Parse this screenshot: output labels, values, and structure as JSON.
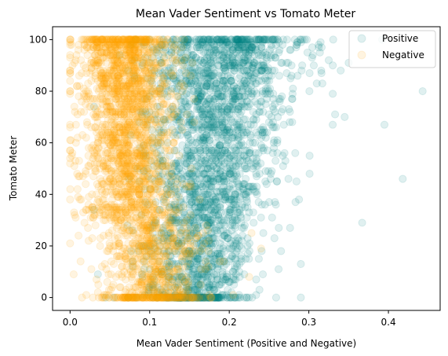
{
  "chart_data": {
    "type": "scatter",
    "title": "Mean Vader Sentiment vs Tomato Meter",
    "xlabel": "Mean Vader Sentiment (Positive and Negative)",
    "ylabel": "Tomato Meter",
    "xlim": [
      -0.022,
      0.465
    ],
    "ylim": [
      -5,
      105
    ],
    "xticks": [
      0.0,
      0.1,
      0.2,
      0.3,
      0.4
    ],
    "xtick_labels": [
      "0.0",
      "0.1",
      "0.2",
      "0.3",
      "0.4"
    ],
    "yticks": [
      0,
      20,
      40,
      60,
      80,
      100
    ],
    "ytick_labels": [
      "0",
      "20",
      "40",
      "60",
      "80",
      "100"
    ],
    "grid": false,
    "legend_position": "top-right",
    "series": [
      {
        "name": "Positive",
        "color": "#008080",
        "alpha": 0.12,
        "x_center": 0.18,
        "x_spread": 0.04,
        "x_range": [
          0.03,
          0.443
        ],
        "count": 2600,
        "outliers": [
          {
            "x": 0.443,
            "y": 80
          },
          {
            "x": 0.418,
            "y": 46
          },
          {
            "x": 0.395,
            "y": 67
          },
          {
            "x": 0.367,
            "y": 29
          },
          {
            "x": 0.345,
            "y": 70
          },
          {
            "x": 0.333,
            "y": 71
          },
          {
            "x": 0.33,
            "y": 67
          },
          {
            "x": 0.31,
            "y": 83
          },
          {
            "x": 0.305,
            "y": 94
          },
          {
            "x": 0.29,
            "y": 0
          },
          {
            "x": 0.29,
            "y": 13
          },
          {
            "x": 0.262,
            "y": 11
          },
          {
            "x": 0.35,
            "y": 91
          },
          {
            "x": 0.34,
            "y": 88
          },
          {
            "x": 0.325,
            "y": 92
          },
          {
            "x": 0.045,
            "y": 0
          },
          {
            "x": 0.055,
            "y": 0
          },
          {
            "x": 0.035,
            "y": 9
          }
        ]
      },
      {
        "name": "Negative",
        "color": "#ffa500",
        "alpha": 0.12,
        "x_center": 0.075,
        "x_spread": 0.03,
        "x_range": [
          0.0,
          0.26
        ],
        "count": 2600,
        "outliers": [
          {
            "x": 0.0,
            "y": 100
          },
          {
            "x": 0.0,
            "y": 21
          },
          {
            "x": 0.0,
            "y": 57
          },
          {
            "x": 0.0,
            "y": 67
          },
          {
            "x": 0.005,
            "y": 33
          },
          {
            "x": 0.01,
            "y": 39
          },
          {
            "x": 0.015,
            "y": 0
          },
          {
            "x": 0.24,
            "y": 19
          },
          {
            "x": 0.228,
            "y": 25
          },
          {
            "x": 0.225,
            "y": 8
          },
          {
            "x": 0.205,
            "y": 1
          }
        ]
      }
    ]
  }
}
